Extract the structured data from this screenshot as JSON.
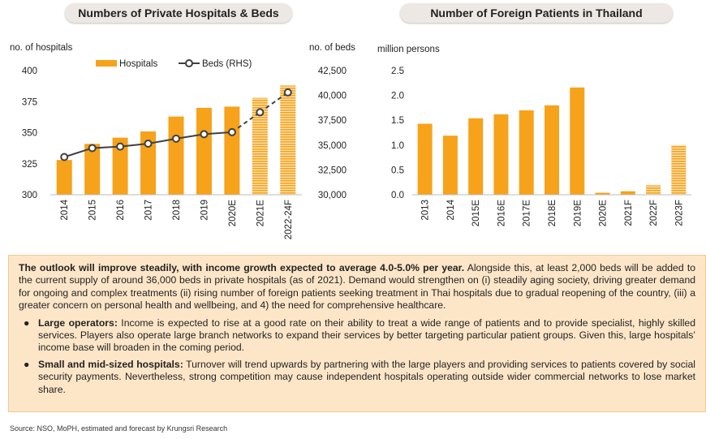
{
  "colors": {
    "bar": "#F7A21B",
    "line": "#404040",
    "forecast_pattern": "#F7A21B",
    "box_bg": "#FDE6C8"
  },
  "chart_data": [
    {
      "type": "bar",
      "title": "Numbers of Private Hospitals & Beds",
      "ylabel": "no. of hospitals",
      "y2label": "no. of beds",
      "categories": [
        "2014",
        "2015",
        "2016",
        "2017",
        "2018",
        "2019",
        "2020E",
        "2021E",
        "2022-24F"
      ],
      "ylim": [
        300,
        400
      ],
      "yticks": [
        "300",
        "325",
        "350",
        "375",
        "400"
      ],
      "y2lim": [
        30000,
        42500
      ],
      "y2ticks": [
        "30,000",
        "32,500",
        "35,000",
        "37,500",
        "40,000",
        "42,500"
      ],
      "legend": [
        "Hospitals",
        "Beds (RHS)"
      ],
      "legend_position": "top",
      "series": [
        {
          "name": "Hospitals",
          "type": "bar",
          "axis": "left",
          "values": [
            328,
            341,
            346,
            351,
            363,
            370,
            371,
            378,
            388
          ],
          "forecast_from_index": 7
        },
        {
          "name": "Beds (RHS)",
          "type": "line",
          "axis": "right",
          "values": [
            33800,
            34700,
            34850,
            35150,
            35650,
            36100,
            36300,
            38300,
            40300
          ],
          "dashed_from_index": 6
        }
      ]
    },
    {
      "type": "bar",
      "title": "Number of Foreign Patients in Thailand",
      "ylabel": "million persons",
      "categories": [
        "2013",
        "2014",
        "2015E",
        "2016E",
        "2017E",
        "2018E",
        "2019E",
        "2020E",
        "2021F",
        "2022F",
        "2023F"
      ],
      "ylim": [
        0,
        2.5
      ],
      "yticks": [
        "0.0",
        "0.5",
        "1.0",
        "1.5",
        "2.0",
        "2.5"
      ],
      "series": [
        {
          "name": "Foreign patients",
          "values": [
            1.43,
            1.19,
            1.54,
            1.62,
            1.7,
            1.8,
            2.16,
            0.04,
            0.07,
            0.19,
            1.0
          ],
          "forecast_from_index": 9
        }
      ]
    }
  ],
  "text": {
    "p1_bold": "The outlook will improve steadily, with income growth expected to average 4.0-5.0% per year.",
    "p1_rest": " Alongside this, at least 2,000 beds will be added to the current supply of around 36,000 beds in private hospitals (as of 2021). Demand would strengthen on (i) steadily aging society, driving greater demand for ongoing and complex treatments (ii) rising number of foreign patients seeking treatment in Thai hospitals due to gradual reopening of the country, (iii) a greater concern on personal health and wellbeing, and 4) the need for comprehensive healthcare.",
    "b1_bold": "Large operators:",
    "b1_rest": " Income is expected to rise at a good rate on their ability to treat a wide range of patients and to provide specialist, highly skilled services. Players also operate large branch networks to expand their services by better targeting particular patient groups. Given this, large hospitals’ income base will broaden in the coming period.",
    "b2_bold": "Small and mid-sized hospitals:",
    "b2_rest": " Turnover will trend upwards by partnering with the large players and providing services to patients covered by social security payments. Nevertheless, strong competition may cause independent hospitals operating outside wider commercial networks to lose market share.",
    "bullet": "●",
    "source": "Source: NSO, MoPH,  estimated and forecast by Krungsri Research"
  }
}
